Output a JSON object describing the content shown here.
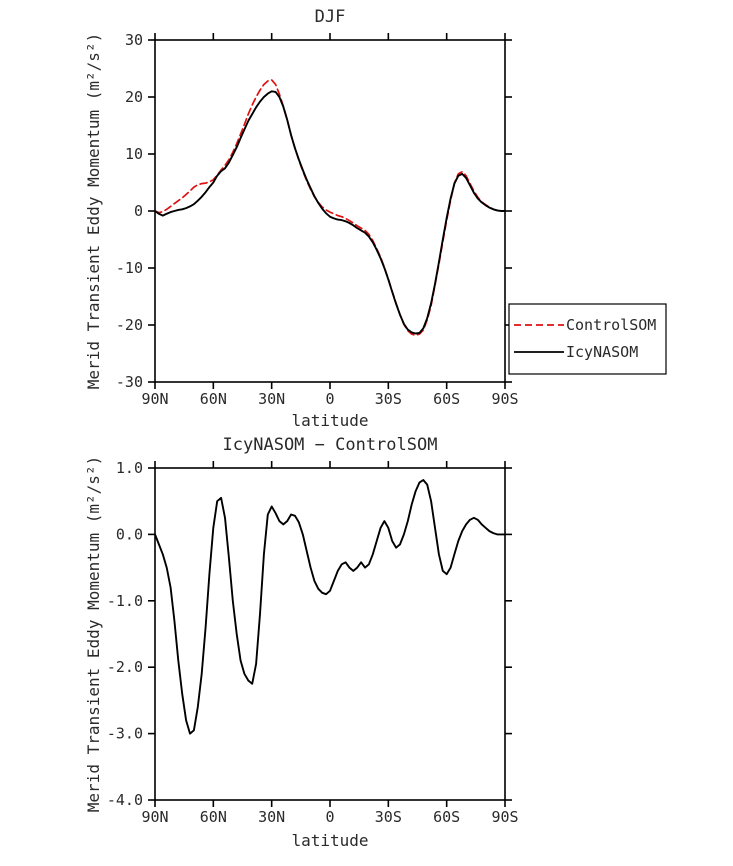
{
  "figure": {
    "background": "#ffffff",
    "axis_color": "#000000",
    "text_color": "#2a2a2a"
  },
  "chart_data": [
    {
      "id": "djf",
      "type": "line",
      "title": "DJF",
      "xlabel": "latitude",
      "ylabel": "Merid Transient Eddy Momentum (m²/s²)",
      "xlim": [
        90,
        -90
      ],
      "ylim": [
        -30,
        30
      ],
      "grid": false,
      "xticks": [
        90,
        60,
        30,
        0,
        -30,
        -60,
        -90
      ],
      "xtick_labels": [
        "90N",
        "60N",
        "30N",
        "0",
        "30S",
        "60S",
        "90S"
      ],
      "yticks": [
        30,
        20,
        10,
        0,
        -10,
        -20,
        -30
      ],
      "ytick_labels": [
        "30",
        "20",
        "10",
        "0",
        "-10",
        "-20",
        "-30"
      ],
      "legend": {
        "position": "right-outside",
        "entries": [
          {
            "label": "ControlSOM",
            "color": "#e01010",
            "dashed": true
          },
          {
            "label": "IcyNASOM",
            "color": "#000000",
            "dashed": false
          }
        ]
      },
      "latitudes": [
        90,
        88,
        86,
        84,
        82,
        80,
        78,
        76,
        74,
        72,
        70,
        68,
        66,
        64,
        62,
        60,
        58,
        56,
        54,
        52,
        50,
        48,
        46,
        44,
        42,
        40,
        38,
        36,
        34,
        32,
        30,
        28,
        26,
        24,
        22,
        20,
        18,
        16,
        14,
        12,
        10,
        8,
        6,
        4,
        2,
        0,
        -2,
        -4,
        -6,
        -8,
        -10,
        -12,
        -14,
        -16,
        -18,
        -20,
        -22,
        -24,
        -26,
        -28,
        -30,
        -32,
        -34,
        -36,
        -38,
        -40,
        -42,
        -44,
        -46,
        -48,
        -50,
        -52,
        -54,
        -56,
        -58,
        -60,
        -62,
        -64,
        -66,
        -68,
        -70,
        -72,
        -74,
        -76,
        -78,
        -80,
        -82,
        -84,
        -86,
        -88,
        -90
      ],
      "series": [
        {
          "name": "ControlSOM",
          "color": "#e01010",
          "dashed": true,
          "values": [
            0.0,
            -0.3,
            -0.1,
            0.3,
            0.8,
            1.3,
            1.8,
            2.3,
            2.9,
            3.5,
            4.2,
            4.6,
            4.8,
            4.9,
            5.1,
            5.5,
            6.3,
            7.2,
            8.0,
            9.0,
            10.3,
            11.8,
            13.5,
            15.2,
            17.0,
            18.6,
            20.0,
            21.2,
            22.2,
            22.8,
            23.0,
            22.2,
            20.5,
            18.4,
            16.0,
            13.3,
            11.0,
            8.9,
            7.0,
            5.3,
            3.8,
            2.5,
            1.5,
            0.7,
            0.2,
            -0.2,
            -0.5,
            -0.8,
            -1.0,
            -1.3,
            -1.7,
            -2.1,
            -2.6,
            -3.0,
            -3.4,
            -4.1,
            -5.2,
            -6.6,
            -8.1,
            -9.9,
            -11.9,
            -14.1,
            -16.2,
            -18.2,
            -19.9,
            -21.0,
            -21.6,
            -21.8,
            -21.6,
            -20.9,
            -19.1,
            -16.6,
            -13.0,
            -9.3,
            -5.4,
            -1.6,
            1.9,
            4.9,
            6.5,
            6.9,
            6.2,
            4.8,
            3.5,
            2.4,
            1.6,
            1.1,
            0.7,
            0.3,
            0.1,
            0.0,
            0.0
          ]
        },
        {
          "name": "IcyNASOM",
          "color": "#000000",
          "dashed": false,
          "values": [
            0.0,
            -0.5,
            -0.8,
            -0.5,
            -0.2,
            0.0,
            0.2,
            0.3,
            0.5,
            0.8,
            1.2,
            1.8,
            2.5,
            3.3,
            4.2,
            5.0,
            6.2,
            7.0,
            7.5,
            8.5,
            9.8,
            11.2,
            12.8,
            14.3,
            15.8,
            17.0,
            18.2,
            19.2,
            20.0,
            20.6,
            21.0,
            20.9,
            20.0,
            18.3,
            16.0,
            13.3,
            11.0,
            9.0,
            7.2,
            5.5,
            4.0,
            2.6,
            1.4,
            0.4,
            -0.4,
            -1.0,
            -1.3,
            -1.5,
            -1.6,
            -1.8,
            -2.1,
            -2.5,
            -3.0,
            -3.4,
            -3.8,
            -4.5,
            -5.5,
            -6.8,
            -8.3,
            -10.0,
            -12.0,
            -14.2,
            -16.3,
            -18.2,
            -19.8,
            -20.8,
            -21.3,
            -21.5,
            -21.4,
            -20.6,
            -18.8,
            -16.2,
            -12.8,
            -9.0,
            -5.0,
            -1.2,
            2.2,
            4.8,
            6.2,
            6.5,
            5.8,
            4.5,
            3.2,
            2.2,
            1.5,
            1.0,
            0.6,
            0.3,
            0.1,
            0.0,
            0.0
          ]
        }
      ]
    },
    {
      "id": "difference",
      "type": "line",
      "title": "IcyNASOM − ControlSOM",
      "xlabel": "latitude",
      "ylabel": "Merid Transient Eddy Momentum (m²/s²)",
      "xlim": [
        90,
        -90
      ],
      "ylim": [
        -4.0,
        1.0
      ],
      "grid": false,
      "xticks": [
        90,
        60,
        30,
        0,
        -30,
        -60,
        -90
      ],
      "xtick_labels": [
        "90N",
        "60N",
        "30N",
        "0",
        "30S",
        "60S",
        "90S"
      ],
      "yticks": [
        1.0,
        0.0,
        -1.0,
        -2.0,
        -3.0,
        -4.0
      ],
      "ytick_labels": [
        "1.0",
        "0.0",
        "-1.0",
        "-2.0",
        "-3.0",
        "-4.0"
      ],
      "latitudes": [
        90,
        88,
        86,
        84,
        82,
        80,
        78,
        76,
        74,
        72,
        70,
        68,
        66,
        64,
        62,
        60,
        58,
        56,
        54,
        52,
        50,
        48,
        46,
        44,
        42,
        40,
        38,
        36,
        34,
        32,
        30,
        28,
        26,
        24,
        22,
        20,
        18,
        16,
        14,
        12,
        10,
        8,
        6,
        4,
        2,
        0,
        -2,
        -4,
        -6,
        -8,
        -10,
        -12,
        -14,
        -16,
        -18,
        -20,
        -22,
        -24,
        -26,
        -28,
        -30,
        -32,
        -34,
        -36,
        -38,
        -40,
        -42,
        -44,
        -46,
        -48,
        -50,
        -52,
        -54,
        -56,
        -58,
        -60,
        -62,
        -64,
        -66,
        -68,
        -70,
        -72,
        -74,
        -76,
        -78,
        -80,
        -82,
        -84,
        -86,
        -88,
        -90
      ],
      "series": [
        {
          "name": "IcyNASOM - ControlSOM",
          "color": "#000000",
          "dashed": false,
          "values": [
            0.0,
            -0.15,
            -0.3,
            -0.5,
            -0.8,
            -1.3,
            -1.9,
            -2.4,
            -2.8,
            -3.0,
            -2.95,
            -2.6,
            -2.1,
            -1.4,
            -0.6,
            0.1,
            0.5,
            0.55,
            0.25,
            -0.35,
            -1.0,
            -1.5,
            -1.9,
            -2.1,
            -2.2,
            -2.25,
            -1.95,
            -1.2,
            -0.3,
            0.3,
            0.42,
            0.32,
            0.2,
            0.15,
            0.2,
            0.3,
            0.28,
            0.18,
            0.0,
            -0.25,
            -0.5,
            -0.7,
            -0.82,
            -0.88,
            -0.9,
            -0.85,
            -0.7,
            -0.55,
            -0.45,
            -0.42,
            -0.5,
            -0.55,
            -0.5,
            -0.42,
            -0.5,
            -0.45,
            -0.3,
            -0.1,
            0.1,
            0.2,
            0.1,
            -0.1,
            -0.2,
            -0.15,
            0.0,
            0.2,
            0.45,
            0.65,
            0.78,
            0.82,
            0.75,
            0.5,
            0.1,
            -0.3,
            -0.55,
            -0.6,
            -0.5,
            -0.3,
            -0.1,
            0.05,
            0.15,
            0.22,
            0.25,
            0.22,
            0.15,
            0.1,
            0.05,
            0.02,
            0.0,
            0.0,
            0.0
          ]
        }
      ]
    }
  ]
}
